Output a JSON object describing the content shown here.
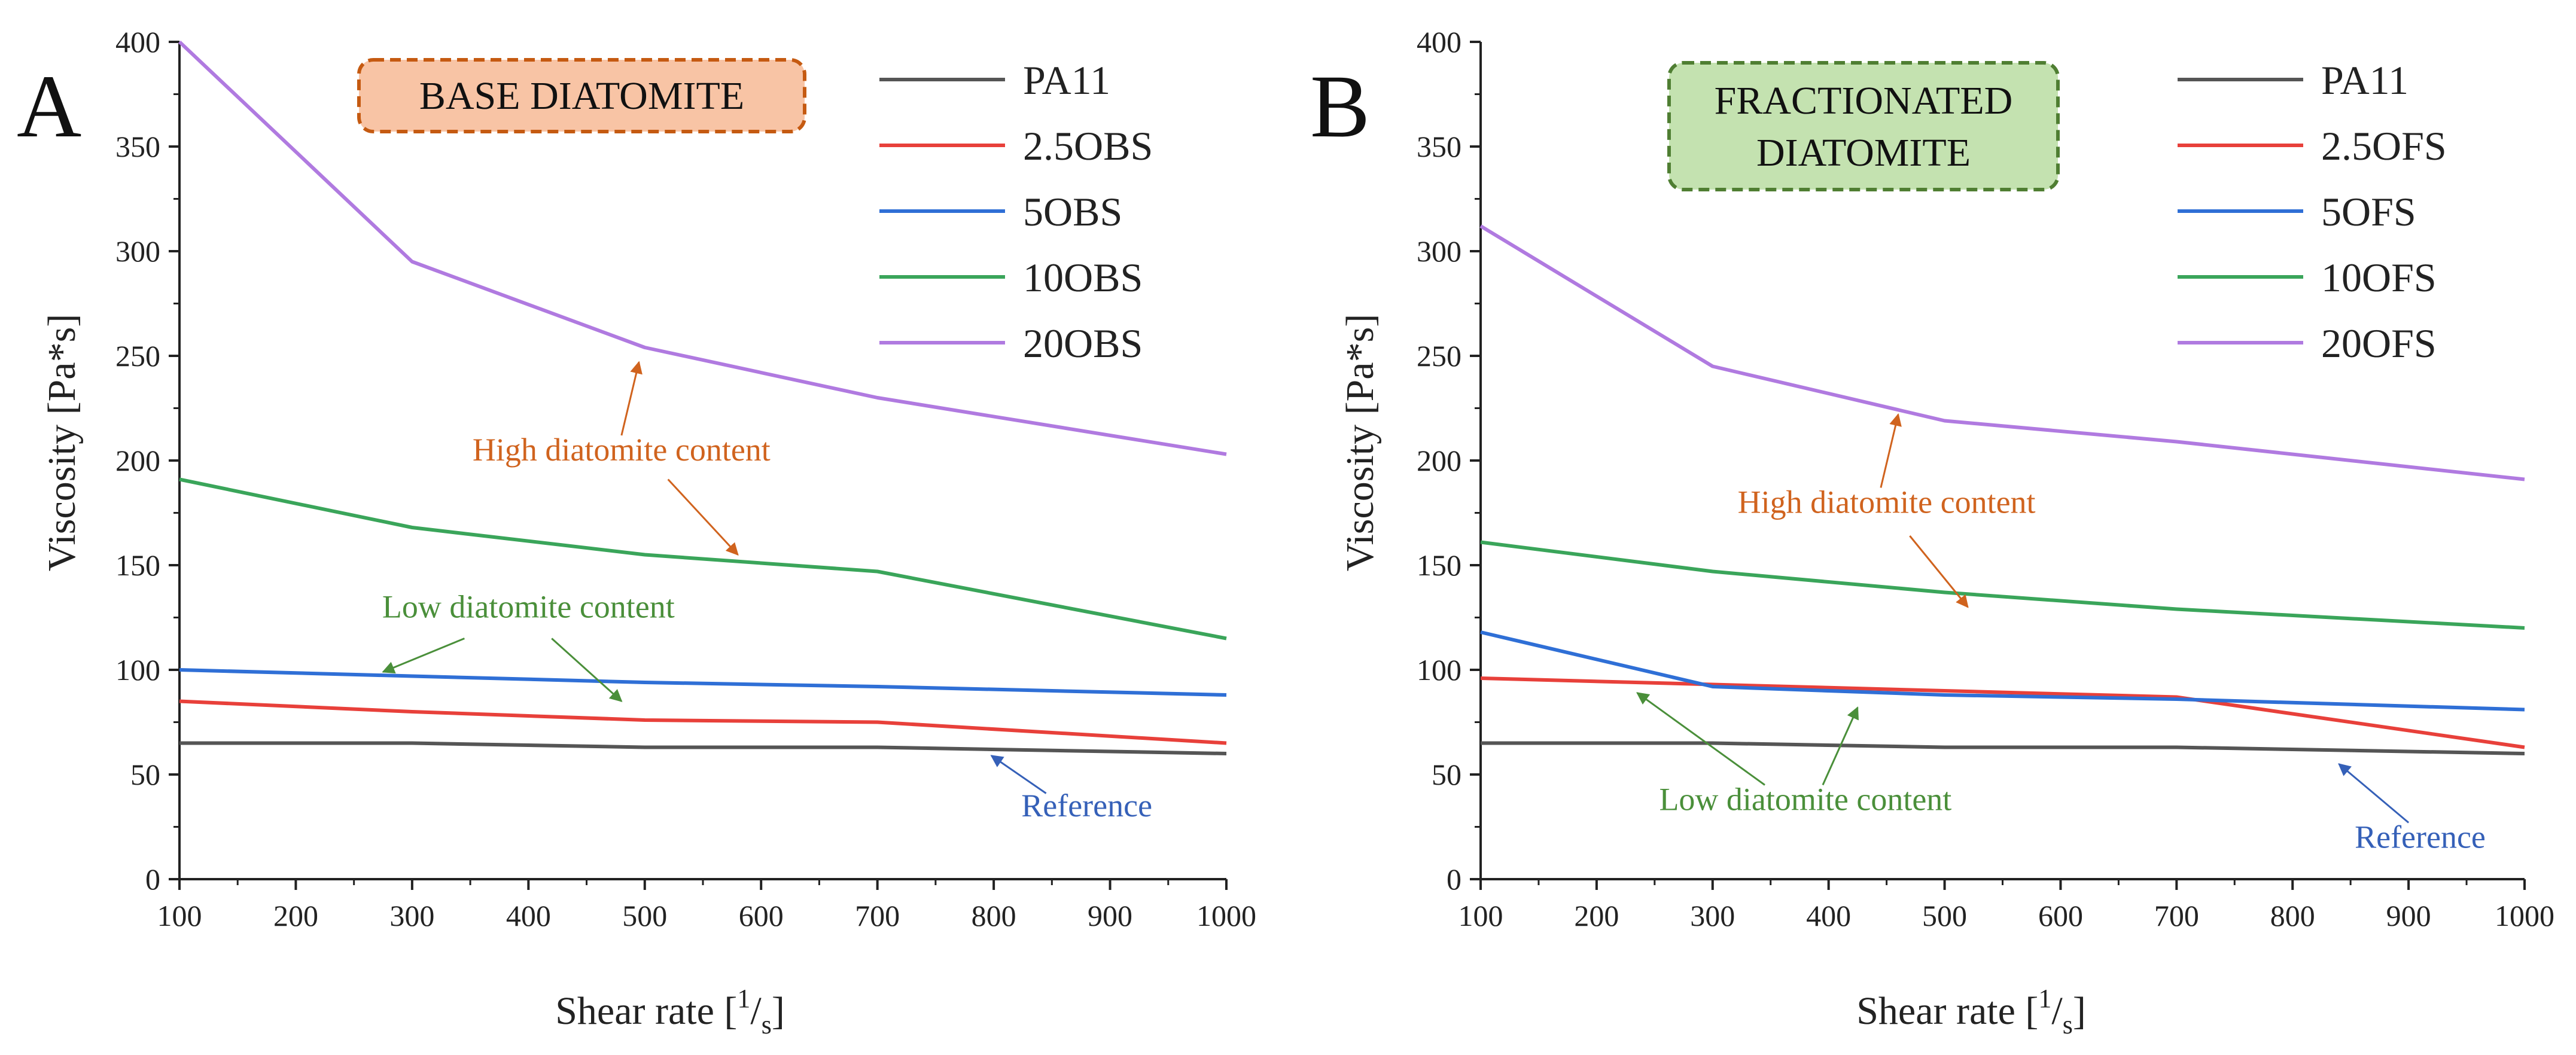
{
  "chart_data": [
    {
      "panel_label": "A",
      "type": "line",
      "callout": "BASE DIATOMITE",
      "callout_fill": "#f8c4a5",
      "callout_stroke": "#c55a11",
      "xlabel_main": "Shear rate [",
      "xlabel_sup": "1",
      "xlabel_sub": "s",
      "xlabel_close": "]",
      "ylabel": "Viscosity [Pa*s]",
      "xlim": [
        100,
        1000
      ],
      "ylim": [
        0,
        400
      ],
      "xticks": [
        100,
        200,
        300,
        400,
        500,
        600,
        700,
        800,
        900,
        1000
      ],
      "yticks": [
        0,
        50,
        100,
        150,
        200,
        250,
        300,
        350,
        400
      ],
      "series": [
        {
          "name": "PA11",
          "color": "#555555",
          "x": [
            100,
            300,
            500,
            700,
            1000
          ],
          "y": [
            65,
            65,
            63,
            63,
            60
          ]
        },
        {
          "name": "2.5OBS",
          "color": "#e8403a",
          "x": [
            100,
            300,
            500,
            700,
            1000
          ],
          "y": [
            85,
            80,
            76,
            75,
            65
          ]
        },
        {
          "name": "5OBS",
          "color": "#2f6fd6",
          "x": [
            100,
            300,
            500,
            700,
            1000
          ],
          "y": [
            100,
            97,
            94,
            92,
            88
          ]
        },
        {
          "name": "10OBS",
          "color": "#3aa55a",
          "x": [
            100,
            300,
            500,
            700,
            1000
          ],
          "y": [
            191,
            168,
            155,
            147,
            115
          ]
        },
        {
          "name": "20OBS",
          "color": "#b07ae0",
          "x": [
            100,
            300,
            500,
            700,
            1000
          ],
          "y": [
            400,
            295,
            254,
            230,
            203
          ]
        }
      ],
      "annotations": [
        {
          "text": "High diatomite content",
          "color": "#d0631e",
          "x": 480,
          "y": 200,
          "arrows": [
            [
              480,
              212,
              495,
              247
            ],
            [
              520,
              191,
              580,
              155
            ]
          ]
        },
        {
          "text": "Low diatomite content",
          "color": "#4a8f3a",
          "x": 400,
          "y": 125,
          "arrows": [
            [
              345,
              115,
              275,
              99
            ],
            [
              420,
              115,
              480,
              85
            ]
          ]
        },
        {
          "text": "Reference",
          "color": "#3560b8",
          "x": 880,
          "y": 30,
          "arrows": [
            [
              845,
              41,
              798,
              59
            ]
          ]
        }
      ]
    },
    {
      "panel_label": "B",
      "type": "line",
      "callout": "FRACTIONATED DIATOMITE",
      "callout_fill": "#c4e2b0",
      "callout_stroke": "#4f7e32",
      "xlabel_main": "Shear rate [",
      "xlabel_sup": "1",
      "xlabel_sub": "s",
      "xlabel_close": "]",
      "ylabel": "Viscosity [Pa*s]",
      "xlim": [
        100,
        1000
      ],
      "ylim": [
        0,
        400
      ],
      "xticks": [
        100,
        200,
        300,
        400,
        500,
        600,
        700,
        800,
        900,
        1000
      ],
      "yticks": [
        0,
        50,
        100,
        150,
        200,
        250,
        300,
        350,
        400
      ],
      "series": [
        {
          "name": "PA11",
          "color": "#555555",
          "x": [
            100,
            300,
            500,
            700,
            1000
          ],
          "y": [
            65,
            65,
            63,
            63,
            60
          ]
        },
        {
          "name": "2.5OFS",
          "color": "#e8403a",
          "x": [
            100,
            300,
            500,
            700,
            1000
          ],
          "y": [
            96,
            93,
            90,
            87,
            63
          ]
        },
        {
          "name": "5OFS",
          "color": "#2f6fd6",
          "x": [
            100,
            300,
            500,
            700,
            1000
          ],
          "y": [
            118,
            92,
            88,
            86,
            81
          ]
        },
        {
          "name": "10OFS",
          "color": "#3aa55a",
          "x": [
            100,
            300,
            500,
            700,
            1000
          ],
          "y": [
            161,
            147,
            137,
            129,
            120
          ]
        },
        {
          "name": "20OFS",
          "color": "#b07ae0",
          "x": [
            100,
            300,
            500,
            700,
            1000
          ],
          "y": [
            312,
            245,
            219,
            209,
            191
          ]
        }
      ],
      "annotations": [
        {
          "text": "High diatomite content",
          "color": "#d0631e",
          "x": 450,
          "y": 175,
          "arrows": [
            [
              445,
              187,
              460,
              222
            ],
            [
              470,
              164,
              520,
              130
            ]
          ]
        },
        {
          "text": "Low diatomite content",
          "color": "#4a8f3a",
          "x": 380,
          "y": 33,
          "arrows": [
            [
              345,
              45,
              235,
              89
            ],
            [
              395,
              45,
              425,
              82
            ]
          ]
        },
        {
          "text": "Reference",
          "color": "#3560b8",
          "x": 910,
          "y": 15,
          "arrows": [
            [
              900,
              27,
              840,
              55
            ]
          ]
        }
      ]
    }
  ]
}
